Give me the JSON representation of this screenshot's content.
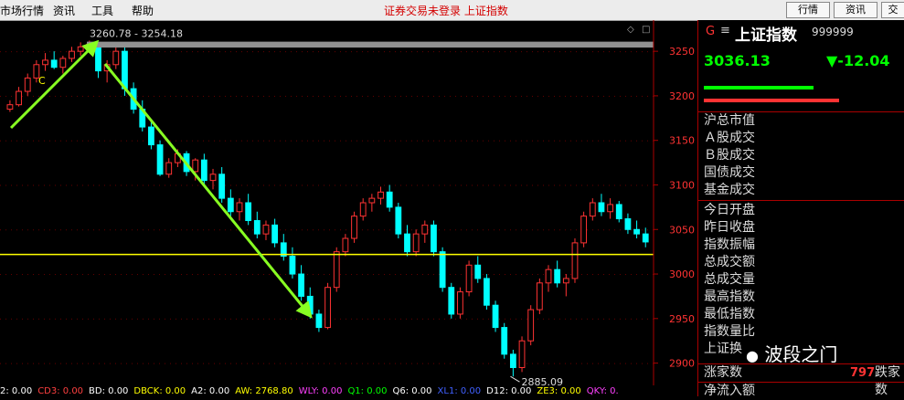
{
  "menubar": {
    "items": [
      "市场行情",
      "资讯",
      "工具",
      "帮助"
    ],
    "status": "证券交易未登录 上证指数",
    "buttons": [
      "行情",
      "资讯",
      "交"
    ]
  },
  "chart": {
    "price_label_top": "3260.78 - 3254.18",
    "low_label": "2885.09",
    "marker_c": "C",
    "y_ticks": [
      "3250",
      "3200",
      "3150",
      "3100",
      "3050",
      "3000",
      "2950",
      "2900"
    ]
  },
  "chart_data": {
    "type": "candlestick",
    "title": "",
    "y_ticks": [
      3250,
      3200,
      3150,
      3100,
      3050,
      3000,
      2950,
      2900
    ],
    "ylim": [
      2875,
      3285
    ],
    "reference_lines": [
      {
        "kind": "band",
        "value_range": [
          3254.18,
          3260.78
        ]
      },
      {
        "kind": "horizontal",
        "value": 3022
      }
    ],
    "low_point": 2885.09,
    "ohlc": [
      [
        3185,
        3195,
        3182,
        3190
      ],
      [
        3190,
        3210,
        3188,
        3205
      ],
      [
        3205,
        3225,
        3200,
        3220
      ],
      [
        3220,
        3240,
        3215,
        3235
      ],
      [
        3235,
        3248,
        3228,
        3240
      ],
      [
        3240,
        3250,
        3230,
        3232
      ],
      [
        3232,
        3245,
        3225,
        3242
      ],
      [
        3242,
        3255,
        3238,
        3250
      ],
      [
        3250,
        3260,
        3245,
        3255
      ],
      [
        3255,
        3262,
        3250,
        3258
      ],
      [
        3258,
        3260,
        3220,
        3228
      ],
      [
        3228,
        3240,
        3215,
        3235
      ],
      [
        3235,
        3255,
        3230,
        3250
      ],
      [
        3250,
        3255,
        3200,
        3208
      ],
      [
        3208,
        3215,
        3180,
        3185
      ],
      [
        3185,
        3195,
        3160,
        3165
      ],
      [
        3165,
        3172,
        3140,
        3145
      ],
      [
        3145,
        3150,
        3110,
        3112
      ],
      [
        3112,
        3130,
        3108,
        3125
      ],
      [
        3125,
        3140,
        3120,
        3135
      ],
      [
        3135,
        3138,
        3110,
        3115
      ],
      [
        3115,
        3130,
        3105,
        3128
      ],
      [
        3128,
        3135,
        3100,
        3105
      ],
      [
        3105,
        3118,
        3095,
        3112
      ],
      [
        3112,
        3120,
        3080,
        3085
      ],
      [
        3085,
        3095,
        3065,
        3070
      ],
      [
        3070,
        3085,
        3060,
        3080
      ],
      [
        3080,
        3090,
        3055,
        3060
      ],
      [
        3060,
        3070,
        3040,
        3045
      ],
      [
        3045,
        3060,
        3038,
        3055
      ],
      [
        3055,
        3062,
        3030,
        3035
      ],
      [
        3035,
        3045,
        3015,
        3020
      ],
      [
        3020,
        3030,
        2995,
        3000
      ],
      [
        3000,
        3010,
        2970,
        2975
      ],
      [
        2975,
        2985,
        2950,
        2955
      ],
      [
        2955,
        2960,
        2935,
        2940
      ],
      [
        2940,
        2990,
        2938,
        2985
      ],
      [
        2985,
        3030,
        2980,
        3025
      ],
      [
        3025,
        3045,
        3020,
        3040
      ],
      [
        3040,
        3070,
        3035,
        3065
      ],
      [
        3065,
        3085,
        3060,
        3080
      ],
      [
        3080,
        3090,
        3070,
        3085
      ],
      [
        3085,
        3098,
        3078,
        3092
      ],
      [
        3092,
        3100,
        3070,
        3075
      ],
      [
        3075,
        3080,
        3040,
        3045
      ],
      [
        3045,
        3055,
        3020,
        3025
      ],
      [
        3025,
        3050,
        3020,
        3045
      ],
      [
        3045,
        3060,
        3035,
        3055
      ],
      [
        3055,
        3060,
        3020,
        3025
      ],
      [
        3025,
        3030,
        2980,
        2985
      ],
      [
        2985,
        2990,
        2950,
        2955
      ],
      [
        2955,
        2985,
        2950,
        2980
      ],
      [
        2980,
        3015,
        2975,
        3010
      ],
      [
        3010,
        3020,
        2990,
        2995
      ],
      [
        2995,
        3000,
        2960,
        2965
      ],
      [
        2965,
        2970,
        2935,
        2940
      ],
      [
        2940,
        2945,
        2905,
        2910
      ],
      [
        2910,
        2915,
        2885,
        2895
      ],
      [
        2895,
        2930,
        2890,
        2925
      ],
      [
        2925,
        2965,
        2920,
        2960
      ],
      [
        2960,
        2995,
        2955,
        2990
      ],
      [
        2990,
        3010,
        2980,
        3005
      ],
      [
        3005,
        3015,
        2985,
        2990
      ],
      [
        2990,
        3000,
        2975,
        2995
      ],
      [
        2995,
        3040,
        2990,
        3035
      ],
      [
        3035,
        3070,
        3030,
        3065
      ],
      [
        3065,
        3085,
        3060,
        3080
      ],
      [
        3080,
        3090,
        3065,
        3070
      ],
      [
        3070,
        3085,
        3062,
        3078
      ],
      [
        3078,
        3082,
        3058,
        3062
      ],
      [
        3062,
        3068,
        3045,
        3050
      ],
      [
        3050,
        3060,
        3040,
        3045
      ],
      [
        3045,
        3052,
        3030,
        3036
      ]
    ]
  },
  "indicators_bar": [
    {
      "text": "2: 0.00",
      "color": "#ffffff"
    },
    {
      "text": "CD3: 0.00",
      "color": "#ff4040"
    },
    {
      "text": "BD: 0.00",
      "color": "#ffffff"
    },
    {
      "text": "DBCK: 0.00",
      "color": "#ffff00"
    },
    {
      "text": "A2: 0.00",
      "color": "#ffffff"
    },
    {
      "text": "AW: 2768.80",
      "color": "#ffff00"
    },
    {
      "text": "WLY: 0.00",
      "color": "#ff40ff"
    },
    {
      "text": "Q1: 0.00",
      "color": "#00ff00"
    },
    {
      "text": "Q6: 0.00",
      "color": "#ffffff"
    },
    {
      "text": "XL1: 0.00",
      "color": "#4060ff"
    },
    {
      "text": "D12: 0.00",
      "color": "#ffffff"
    },
    {
      "text": "ZE3: 0.00",
      "color": "#ffff00"
    },
    {
      "text": "QKY: 0.",
      "color": "#ff40ff"
    }
  ],
  "side_panel": {
    "code_prefix": "G",
    "name": "上证指数",
    "code": "999999",
    "price": "3036.13",
    "change": "▼-12.04",
    "rows": [
      "沪总市值",
      "Ａ股成交",
      "Ｂ股成交",
      "国债成交",
      "基金成交",
      "今日开盘",
      "昨日收盘",
      "指数振幅",
      "总成交额",
      "总成交量",
      "最高指数",
      "最低指数",
      "指数量比",
      "上证换"
    ],
    "rise_label": "涨家数",
    "rise_value": "797",
    "fall_label": "跌家数",
    "bottom_row": "净流入额",
    "watermark": "波段之门",
    "colors": {
      "up": "#ff3333",
      "down": "#00ffff",
      "green": "#00ff00"
    }
  }
}
